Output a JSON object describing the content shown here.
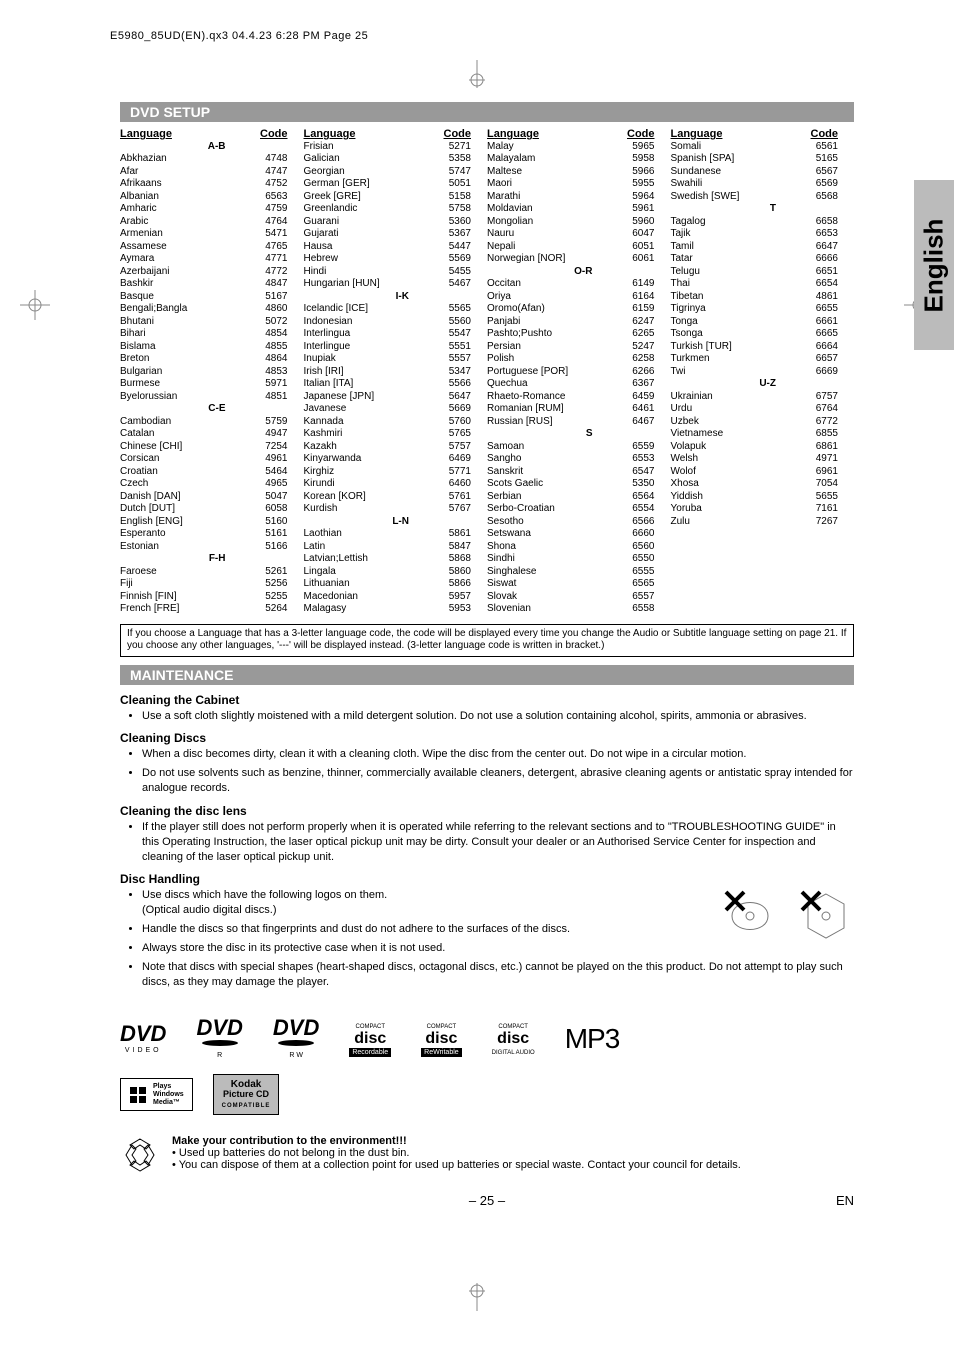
{
  "header": "E5980_85UD(EN).qx3  04.4.23  6:28 PM  Page 25",
  "sideTab": "English",
  "sections": {
    "dvd": "DVD SETUP",
    "maint": "MAINTENANCE"
  },
  "tableHead": {
    "lang": "Language",
    "code": "Code"
  },
  "col1": {
    "names": [
      "A-B",
      "Abkhazian",
      "Afar",
      "Afrikaans",
      "Albanian",
      "Amharic",
      "Arabic",
      "Armenian",
      "Assamese",
      "Aymara",
      "Azerbaijani",
      "Bashkir",
      "Basque",
      "Bengali;Bangla",
      "Bhutani",
      "Bihari",
      "Bislama",
      "Breton",
      "Bulgarian",
      "Burmese",
      "Byelorussian",
      "C-E",
      "Cambodian",
      "Catalan",
      "Chinese [CHI]",
      "Corsican",
      "Croatian",
      "Czech",
      "Danish [DAN]",
      "Dutch [DUT]",
      "English [ENG]",
      "Esperanto",
      "Estonian",
      "F-H",
      "Faroese",
      "Fiji",
      "Finnish [FIN]",
      "French [FRE]"
    ],
    "codes": [
      "",
      "4748",
      "4747",
      "4752",
      "6563",
      "4759",
      "4764",
      "5471",
      "4765",
      "4771",
      "4772",
      "4847",
      "5167",
      "4860",
      "5072",
      "4854",
      "4855",
      "4864",
      "4853",
      "5971",
      "4851",
      "",
      "5759",
      "4947",
      "7254",
      "4961",
      "5464",
      "4965",
      "5047",
      "6058",
      "5160",
      "5161",
      "5166",
      "",
      "5261",
      "5256",
      "5255",
      "5264"
    ],
    "groups": [
      0,
      21,
      33
    ]
  },
  "col2": {
    "names": [
      "Frisian",
      "Galician",
      "Georgian",
      "German [GER]",
      "Greek [GRE]",
      "Greenlandic",
      "Guarani",
      "Gujarati",
      "Hausa",
      "Hebrew",
      "Hindi",
      "Hungarian [HUN]",
      "I-K",
      "Icelandic [ICE]",
      "Indonesian",
      "Interlingua",
      "Interlingue",
      "Inupiak",
      "Irish [IRI]",
      "Italian [ITA]",
      "Japanese [JPN]",
      "Javanese",
      "Kannada",
      "Kashmiri",
      "Kazakh",
      "Kinyarwanda",
      "Kirghiz",
      "Kirundi",
      "Korean [KOR]",
      "Kurdish",
      "L-N",
      "Laothian",
      "Latin",
      "Latvian;Lettish",
      "Lingala",
      "Lithuanian",
      "Macedonian",
      "Malagasy"
    ],
    "codes": [
      "5271",
      "5358",
      "5747",
      "5051",
      "5158",
      "5758",
      "5360",
      "5367",
      "5447",
      "5569",
      "5455",
      "5467",
      "",
      "5565",
      "5560",
      "5547",
      "5551",
      "5557",
      "5347",
      "5566",
      "5647",
      "5669",
      "5760",
      "5765",
      "5757",
      "6469",
      "5771",
      "6460",
      "5761",
      "5767",
      "",
      "5861",
      "5847",
      "5868",
      "5860",
      "5866",
      "5957",
      "5953"
    ],
    "groups": [
      12,
      30
    ]
  },
  "col3": {
    "names": [
      "Malay",
      "Malayalam",
      "Maltese",
      "Maori",
      "Marathi",
      "Moldavian",
      "Mongolian",
      "Nauru",
      "Nepali",
      "Norwegian [NOR]",
      "O-R",
      "Occitan",
      "Oriya",
      "Oromo(Afan)",
      "Panjabi",
      "Pashto;Pushto",
      "Persian",
      "Polish",
      "Portuguese [POR]",
      "Quechua",
      "Rhaeto-Romance",
      "Romanian [RUM]",
      "Russian [RUS]",
      "S",
      "Samoan",
      "Sangho",
      "Sanskrit",
      "Scots Gaelic",
      "Serbian",
      "Serbo-Croatian",
      "Sesotho",
      "Setswana",
      "Shona",
      "Sindhi",
      "Singhalese",
      "Siswat",
      "Slovak",
      "Slovenian"
    ],
    "codes": [
      "5965",
      "5958",
      "5966",
      "5955",
      "5964",
      "5961",
      "5960",
      "6047",
      "6051",
      "6061",
      "",
      "6149",
      "6164",
      "6159",
      "6247",
      "6265",
      "5247",
      "6258",
      "6266",
      "6367",
      "6459",
      "6461",
      "6467",
      "",
      "6559",
      "6553",
      "6547",
      "5350",
      "6564",
      "6554",
      "6566",
      "6660",
      "6560",
      "6550",
      "6555",
      "6565",
      "6557",
      "6558"
    ],
    "groups": [
      10,
      23
    ]
  },
  "col4": {
    "names": [
      "Somali",
      "Spanish [SPA]",
      "Sundanese",
      "Swahili",
      "Swedish [SWE]",
      "T",
      "Tagalog",
      "Tajik",
      "Tamil",
      "Tatar",
      "Telugu",
      "Thai",
      "Tibetan",
      "Tigrinya",
      "Tonga",
      "Tsonga",
      "Turkish [TUR]",
      "Turkmen",
      "Twi",
      "U-Z",
      "Ukrainian",
      "Urdu",
      "Uzbek",
      "Vietnamese",
      "Volapuk",
      "Welsh",
      "Wolof",
      "Xhosa",
      "Yiddish",
      "Yoruba",
      "Zulu"
    ],
    "codes": [
      "6561",
      "5165",
      "6567",
      "6569",
      "6568",
      "",
      "6658",
      "6653",
      "6647",
      "6666",
      "6651",
      "6654",
      "4861",
      "6655",
      "6661",
      "6665",
      "6664",
      "6657",
      "6669",
      "",
      "6757",
      "6764",
      "6772",
      "6855",
      "6861",
      "4971",
      "6961",
      "7054",
      "5655",
      "7161",
      "7267"
    ],
    "groups": [
      5,
      19
    ]
  },
  "note": "If you choose a Language that has a 3-letter language code, the code will be displayed every time you change the Audio or Subtitle language setting on page 21. If you choose any other languages, '---' will be displayed instead. (3-letter language code is written in bracket.)",
  "maint": {
    "h1": "Cleaning the Cabinet",
    "b1": "Use a soft cloth slightly moistened with a mild detergent solution. Do not use a solution containing alcohol, spirits, ammonia or abrasives.",
    "h2": "Cleaning Discs",
    "b2a": "When a disc becomes dirty, clean it with a cleaning cloth. Wipe the disc from the center out. Do not wipe in a circular motion.",
    "b2b": "Do not use solvents such as benzine, thinner, commercially available cleaners, detergent, abrasive cleaning agents or antistatic spray intended for analogue records.",
    "h3": "Cleaning the disc lens",
    "b3": "If the player still does not perform properly when it is operated while referring to the relevant sections and to \"TROUBLESHOOTING GUIDE\" in this Operating Instruction, the laser optical pickup unit may be dirty. Consult your dealer or an Authorised Service Center for inspection and cleaning of the laser optical pickup unit.",
    "h4": "Disc Handling",
    "b4a": "Use discs which have the following logos on them.",
    "b4a2": "(Optical audio digital discs.)",
    "b4b": "Handle the discs so that fingerprints and dust do not adhere to the surfaces of the discs.",
    "b4c": "Always store the disc in its protective case when it is not used.",
    "b4d": "Note that discs with special shapes (heart-shaped discs, octagonal discs, etc.) cannot be played on the this product. Do not attempt to play such discs, as they may damage the player."
  },
  "logos": {
    "dvdVideo": "DVD VIDEO",
    "dvdR": "DVD R",
    "dvdRW": "DVD RW",
    "cdRec": "COMPACT disc Recordable",
    "cdRW": "COMPACT disc ReWritable",
    "cdDA": "COMPACT disc DIGITAL AUDIO",
    "mp3": "MP3",
    "win": "Plays Windows Media™",
    "kodak": "Kodak Picture CD COMPATIBLE"
  },
  "env": {
    "title": "Make your contribution to the environment!!!",
    "l1": "• Used up batteries do not belong in the dust bin.",
    "l2": "• You can dispose of them at a collection point for used up batteries or special waste. Contact your council for details."
  },
  "footer": {
    "page": "– 25 –",
    "lang": "EN"
  }
}
